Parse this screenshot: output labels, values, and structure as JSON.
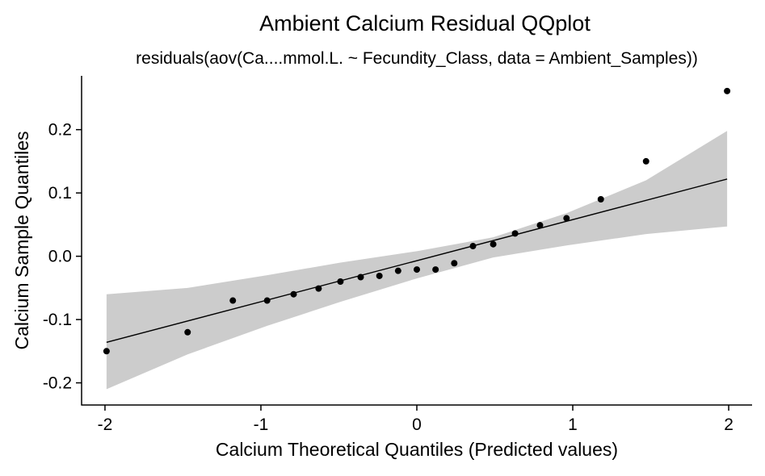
{
  "chart_data": {
    "type": "scatter",
    "title": "Ambient Calcium Residual QQplot",
    "subtitle": "residuals(aov(Ca....mmol.L. ~ Fecundity_Class, data = Ambient_Samples))",
    "xlabel": "Calcium Theoretical Quantiles (Predicted values)",
    "ylabel": "Calcium Sample Quantiles",
    "xlim": [
      -2.15,
      2.15
    ],
    "ylim": [
      -0.235,
      0.285
    ],
    "x_ticks": [
      -2,
      -1,
      0,
      1,
      2
    ],
    "x_tick_labels": [
      "-2",
      "-1",
      "0",
      "1",
      "2"
    ],
    "y_ticks": [
      -0.2,
      -0.1,
      0.0,
      0.1,
      0.2
    ],
    "y_tick_labels": [
      "-0.2",
      "-0.1",
      "0.0",
      "0.1",
      "0.2"
    ],
    "grid": false,
    "points": {
      "x": [
        -1.99,
        -1.47,
        -1.18,
        -0.96,
        -0.79,
        -0.63,
        -0.49,
        -0.36,
        -0.24,
        -0.12,
        0.0,
        0.12,
        0.24,
        0.36,
        0.49,
        0.63,
        0.79,
        0.96,
        1.18,
        1.47,
        1.99
      ],
      "y": [
        -0.15,
        -0.12,
        -0.07,
        -0.07,
        -0.06,
        -0.051,
        -0.04,
        -0.033,
        -0.031,
        -0.023,
        -0.021,
        -0.021,
        -0.011,
        0.016,
        0.019,
        0.036,
        0.049,
        0.06,
        0.09,
        0.15,
        0.261
      ]
    },
    "reference_line": {
      "x": [
        -1.99,
        1.99
      ],
      "y": [
        -0.136,
        0.122
      ]
    },
    "confidence_band": {
      "x": [
        -1.99,
        -1.47,
        -0.96,
        -0.49,
        0.0,
        0.49,
        0.96,
        1.47,
        1.99
      ],
      "lower": [
        -0.21,
        -0.155,
        -0.11,
        -0.072,
        -0.035,
        -0.002,
        0.017,
        0.035,
        0.047
      ],
      "upper": [
        -0.06,
        -0.05,
        -0.03,
        -0.01,
        0.008,
        0.03,
        0.068,
        0.12,
        0.198
      ]
    },
    "colors": {
      "points": "#000000",
      "line": "#000000",
      "band": "#cccccc",
      "axis": "#000000"
    }
  }
}
